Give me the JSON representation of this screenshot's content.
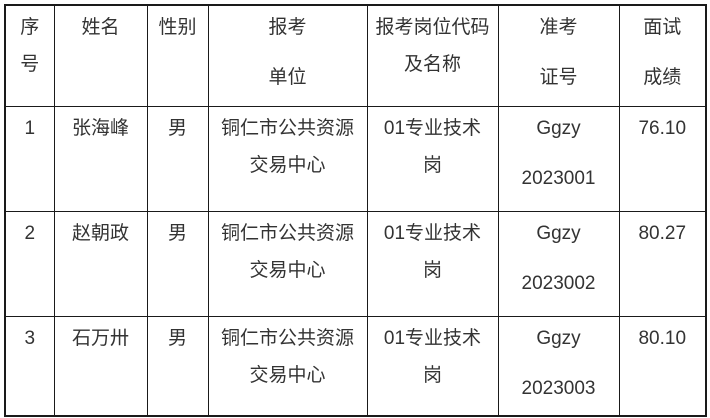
{
  "colors": {
    "text": "#333333",
    "border": "#1a1a1a",
    "background": "#ffffff"
  },
  "table": {
    "headers": [
      [
        "序",
        "号"
      ],
      [
        "姓名"
      ],
      [
        "性别"
      ],
      [
        "报考",
        "单位"
      ],
      [
        "报考岗位代码",
        "及名称"
      ],
      [
        "准考",
        "证号"
      ],
      [
        "面试",
        "成绩"
      ]
    ],
    "rows": [
      [
        [
          "1"
        ],
        [
          "张海峰"
        ],
        [
          "男"
        ],
        [
          "铜仁市公共资源",
          "交易中心"
        ],
        [
          "01专业技术",
          "岗"
        ],
        [
          "Ggzy",
          "2023001"
        ],
        [
          "76.10"
        ]
      ],
      [
        [
          "2"
        ],
        [
          "赵朝政"
        ],
        [
          "男"
        ],
        [
          "铜仁市公共资源",
          "交易中心"
        ],
        [
          "01专业技术",
          "岗"
        ],
        [
          "Ggzy",
          "2023002"
        ],
        [
          "80.27"
        ]
      ],
      [
        [
          "3"
        ],
        [
          "石万卅"
        ],
        [
          "男"
        ],
        [
          "铜仁市公共资源",
          "交易中心"
        ],
        [
          "01专业技术",
          "岗"
        ],
        [
          "Ggzy",
          "2023003"
        ],
        [
          "80.10"
        ]
      ]
    ]
  }
}
